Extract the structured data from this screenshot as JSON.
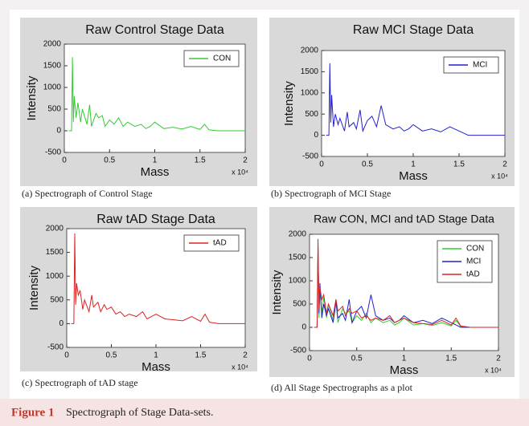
{
  "chart_data": [
    {
      "type": "line",
      "title": "Raw Control Stage Data",
      "caption": "(a) Spectrograph of Control Stage",
      "x_label": "Mass",
      "y_label": "Intensity",
      "x_multiplier": "x 10⁴",
      "xlim": [
        0,
        2
      ],
      "xticks": [
        0,
        0.5,
        1,
        1.5,
        2
      ],
      "ylim": [
        -500,
        2000
      ],
      "yticks": [
        -500,
        0,
        500,
        1000,
        1500,
        2000
      ],
      "x": [
        0.05,
        0.08,
        0.09,
        0.1,
        0.11,
        0.13,
        0.15,
        0.18,
        0.2,
        0.25,
        0.28,
        0.3,
        0.35,
        0.38,
        0.42,
        0.45,
        0.5,
        0.55,
        0.6,
        0.65,
        0.7,
        0.78,
        0.85,
        0.9,
        0.95,
        1.0,
        1.1,
        1.2,
        1.3,
        1.4,
        1.5,
        1.55,
        1.6,
        1.7,
        2.0
      ],
      "series": [
        {
          "name": "CON",
          "color": "#33cc33",
          "values": [
            0,
            0,
            1700,
            200,
            800,
            300,
            650,
            200,
            500,
            150,
            600,
            100,
            400,
            300,
            350,
            100,
            250,
            150,
            300,
            100,
            200,
            100,
            150,
            50,
            100,
            200,
            50,
            80,
            40,
            100,
            30,
            150,
            20,
            0,
            0
          ]
        }
      ]
    },
    {
      "type": "line",
      "title": "Raw MCI Stage Data",
      "caption": "(b) Spectrograph of MCI Stage",
      "x_label": "Mass",
      "y_label": "Intensity",
      "x_multiplier": "x 10⁴",
      "xlim": [
        0,
        2
      ],
      "xticks": [
        0,
        0.5,
        1,
        1.5,
        2
      ],
      "ylim": [
        -500,
        2000
      ],
      "yticks": [
        -500,
        0,
        500,
        1000,
        1500,
        2000
      ],
      "x": [
        0.05,
        0.08,
        0.09,
        0.1,
        0.11,
        0.13,
        0.15,
        0.18,
        0.2,
        0.25,
        0.28,
        0.3,
        0.35,
        0.38,
        0.42,
        0.45,
        0.5,
        0.55,
        0.6,
        0.65,
        0.7,
        0.78,
        0.85,
        0.9,
        0.95,
        1.0,
        1.1,
        1.2,
        1.3,
        1.4,
        1.5,
        1.55,
        1.6,
        1.7,
        2.0
      ],
      "series": [
        {
          "name": "MCI",
          "color": "#2222cc",
          "values": [
            0,
            0,
            1700,
            300,
            950,
            200,
            500,
            250,
            400,
            100,
            550,
            200,
            300,
            150,
            600,
            100,
            350,
            450,
            200,
            700,
            250,
            150,
            200,
            100,
            150,
            250,
            100,
            150,
            80,
            200,
            100,
            50,
            0,
            0,
            0
          ]
        }
      ]
    },
    {
      "type": "line",
      "title": "Raw tAD Stage Data",
      "caption": "(c) Spectrograph of tAD stage",
      "x_label": "Mass",
      "y_label": "Intensity",
      "x_multiplier": "x 10⁴",
      "xlim": [
        0,
        2
      ],
      "xticks": [
        0,
        0.5,
        1,
        1.5,
        2
      ],
      "ylim": [
        -500,
        2000
      ],
      "yticks": [
        -500,
        0,
        500,
        1000,
        1500,
        2000
      ],
      "x": [
        0.05,
        0.08,
        0.09,
        0.1,
        0.11,
        0.13,
        0.15,
        0.18,
        0.2,
        0.25,
        0.28,
        0.3,
        0.35,
        0.38,
        0.42,
        0.45,
        0.5,
        0.55,
        0.6,
        0.65,
        0.7,
        0.78,
        0.85,
        0.9,
        0.95,
        1.0,
        1.1,
        1.2,
        1.3,
        1.4,
        1.5,
        1.55,
        1.6,
        1.7,
        2.0
      ],
      "series": [
        {
          "name": "tAD",
          "color": "#dd2222",
          "values": [
            0,
            0,
            1900,
            400,
            850,
            600,
            700,
            300,
            500,
            250,
            600,
            350,
            450,
            250,
            400,
            300,
            350,
            200,
            250,
            150,
            200,
            150,
            250,
            100,
            150,
            200,
            100,
            80,
            60,
            150,
            50,
            200,
            30,
            0,
            0
          ]
        }
      ]
    },
    {
      "type": "line",
      "title": "Raw CON, MCI and tAD Stage Data",
      "caption": "(d) All Stage Spectrographs as a plot",
      "x_label": "Mass",
      "y_label": "Intensity",
      "x_multiplier": "x 10⁴",
      "xlim": [
        0,
        2
      ],
      "xticks": [
        0,
        0.5,
        1,
        1.5,
        2
      ],
      "ylim": [
        -500,
        2000
      ],
      "yticks": [
        -500,
        0,
        500,
        1000,
        1500,
        2000
      ],
      "x": [
        0.05,
        0.08,
        0.09,
        0.1,
        0.11,
        0.13,
        0.15,
        0.18,
        0.2,
        0.25,
        0.28,
        0.3,
        0.35,
        0.38,
        0.42,
        0.45,
        0.5,
        0.55,
        0.6,
        0.65,
        0.7,
        0.78,
        0.85,
        0.9,
        0.95,
        1.0,
        1.1,
        1.2,
        1.3,
        1.4,
        1.5,
        1.55,
        1.6,
        1.7,
        2.0
      ],
      "series": [
        {
          "name": "CON",
          "color": "#33cc33",
          "values": [
            0,
            0,
            1700,
            200,
            800,
            300,
            650,
            200,
            500,
            150,
            600,
            100,
            400,
            300,
            350,
            100,
            250,
            150,
            300,
            100,
            200,
            100,
            150,
            50,
            100,
            200,
            50,
            80,
            40,
            100,
            30,
            150,
            20,
            0,
            0
          ]
        },
        {
          "name": "MCI",
          "color": "#2222cc",
          "values": [
            0,
            0,
            1700,
            300,
            950,
            200,
            500,
            250,
            400,
            100,
            550,
            200,
            300,
            150,
            600,
            100,
            350,
            450,
            200,
            700,
            250,
            150,
            200,
            100,
            150,
            250,
            100,
            150,
            80,
            200,
            100,
            50,
            0,
            0,
            0
          ]
        },
        {
          "name": "tAD",
          "color": "#dd2222",
          "values": [
            0,
            0,
            1900,
            400,
            850,
            600,
            700,
            300,
            500,
            250,
            600,
            350,
            450,
            250,
            400,
            300,
            350,
            200,
            250,
            150,
            200,
            150,
            250,
            100,
            150,
            200,
            100,
            80,
            60,
            150,
            50,
            200,
            30,
            0,
            0
          ]
        }
      ]
    }
  ],
  "figure_caption": {
    "label": "Figure 1",
    "text": "Spectrograph of Stage Data-sets."
  }
}
